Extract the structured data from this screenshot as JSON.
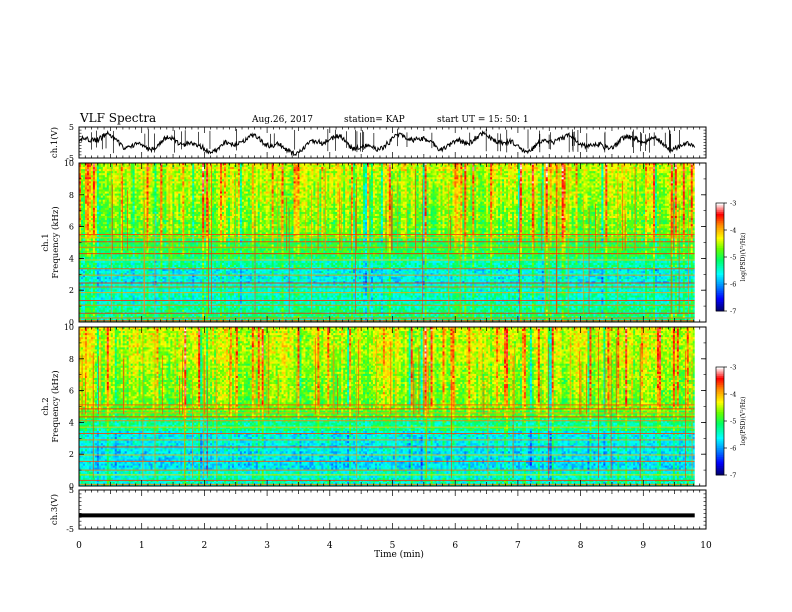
{
  "header": {
    "title": "VLF Spectra",
    "date": "Aug.26, 2017",
    "station": "station= KAP",
    "start_time": "start  UT =    15: 50: 1"
  },
  "colors": {
    "waveform": "#000000",
    "colormap": [
      "#000060",
      "#0000ff",
      "#00a0ff",
      "#00ffff",
      "#00ff60",
      "#60ff00",
      "#ffff00",
      "#ff8000",
      "#ff0000",
      "#ffffff"
    ]
  },
  "chart_data": [
    {
      "type": "line",
      "panel": "ch1-waveform",
      "ylabel": "ch.1(V)",
      "ylim": [
        -5,
        5
      ],
      "yticks": [
        "5",
        "-5"
      ],
      "x_range_min": [
        0,
        10
      ]
    },
    {
      "type": "heatmap",
      "panel": "ch1-spectrogram",
      "ylabel": "ch.1\nFrequency  (kHz)",
      "ylim": [
        0,
        10
      ],
      "yticks": [
        "0",
        "2",
        "4",
        "6",
        "8",
        "10"
      ],
      "colorbar": {
        "label": "log(PSD)(V²/Hz)",
        "range": [
          -7,
          -3
        ],
        "ticks": [
          "-3",
          "-4",
          "-5",
          "-6",
          "-7"
        ]
      }
    },
    {
      "type": "heatmap",
      "panel": "ch2-spectrogram",
      "ylabel": "ch.2\nFrequency  (kHz)",
      "ylim": [
        0,
        10
      ],
      "yticks": [
        "0",
        "2",
        "4",
        "6",
        "8",
        "10"
      ],
      "colorbar": {
        "label": "log(PSD)(V²/Hz)",
        "range": [
          -7,
          -3
        ],
        "ticks": [
          "-3",
          "-4",
          "-5",
          "-6",
          "-7"
        ]
      }
    },
    {
      "type": "line",
      "panel": "ch3-waveform",
      "ylabel": "ch.3(V)",
      "ylim": [
        -5,
        5
      ],
      "yticks": [
        "5",
        "-5"
      ],
      "value_constant": -1.5
    }
  ],
  "xaxis": {
    "label": "Time  (min)",
    "range": [
      0,
      10
    ],
    "ticks": [
      "0",
      "1",
      "2",
      "3",
      "4",
      "5",
      "6",
      "7",
      "8",
      "9",
      "10"
    ]
  }
}
